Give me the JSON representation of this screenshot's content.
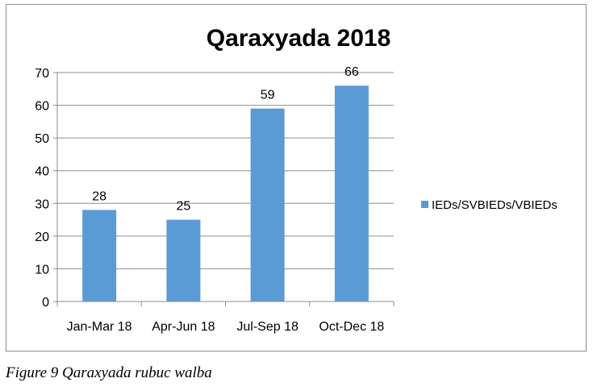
{
  "chart_data": {
    "type": "bar",
    "title": "Qaraxyada 2018",
    "categories": [
      "Jan-Mar 18",
      "Apr-Jun 18",
      "Jul-Sep 18",
      "Oct-Dec 18"
    ],
    "series": [
      {
        "name": "IEDs/SVBIEDs/VBIEDs",
        "values": [
          28,
          25,
          59,
          66
        ],
        "color": "#5b9bd5"
      }
    ],
    "data_labels": [
      "28",
      "25",
      "59",
      "66"
    ],
    "ylim": [
      0,
      70
    ],
    "yticks": [
      "0",
      "10",
      "20",
      "30",
      "40",
      "50",
      "60",
      "70"
    ],
    "grid": true,
    "legend": "right"
  },
  "caption": "Figure 9 Qaraxyada rubuc walba"
}
